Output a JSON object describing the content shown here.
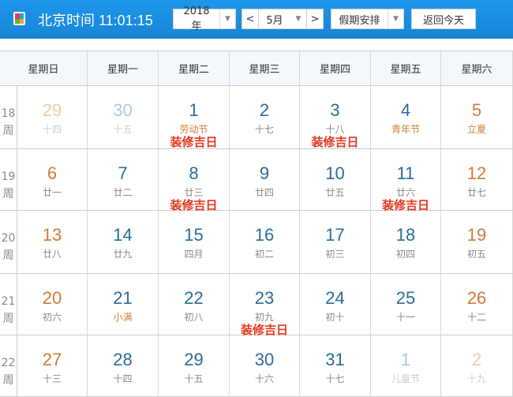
{
  "header": {
    "clock_label": "北京时间 11:01:15",
    "year": "2018年",
    "month": "5月",
    "prev": "<",
    "next": ">",
    "holiday": "假期安排",
    "today_button": "返回今天",
    "logo_colors": [
      "#e8365d",
      "#1aa3e8",
      "#5ab43a",
      "#f3a41c"
    ]
  },
  "weekdays": [
    "星期日",
    "星期一",
    "星期二",
    "星期三",
    "星期四",
    "星期五",
    "星期六"
  ],
  "week_suffix": "周",
  "colors": {
    "weekday": "#2a6c98",
    "weekend": "#d0793b",
    "tag": "#e4381d",
    "festival": "#d0803a"
  },
  "weeks": [
    {
      "no": "18",
      "days": [
        {
          "d": "29",
          "l": "十四",
          "o": true
        },
        {
          "d": "30",
          "l": "十五",
          "o": true
        },
        {
          "d": "1",
          "l": "劳动节",
          "f": true,
          "t": "装修吉日"
        },
        {
          "d": "2",
          "l": "十七"
        },
        {
          "d": "3",
          "l": "十八",
          "t": "装修吉日"
        },
        {
          "d": "4",
          "l": "青年节",
          "f": true
        },
        {
          "d": "5",
          "l": "立夏",
          "f": true
        }
      ]
    },
    {
      "no": "19",
      "days": [
        {
          "d": "6",
          "l": "廿一"
        },
        {
          "d": "7",
          "l": "廿二"
        },
        {
          "d": "8",
          "l": "廿三",
          "t": "装修吉日"
        },
        {
          "d": "9",
          "l": "廿四"
        },
        {
          "d": "10",
          "l": "廿五"
        },
        {
          "d": "11",
          "l": "廿六",
          "t": "装修吉日"
        },
        {
          "d": "12",
          "l": "廿七"
        }
      ]
    },
    {
      "no": "20",
      "days": [
        {
          "d": "13",
          "l": "廿八"
        },
        {
          "d": "14",
          "l": "廿九"
        },
        {
          "d": "15",
          "l": "四月"
        },
        {
          "d": "16",
          "l": "初二"
        },
        {
          "d": "17",
          "l": "初三"
        },
        {
          "d": "18",
          "l": "初四"
        },
        {
          "d": "19",
          "l": "初五"
        }
      ]
    },
    {
      "no": "21",
      "days": [
        {
          "d": "20",
          "l": "初六"
        },
        {
          "d": "21",
          "l": "小满",
          "f": true
        },
        {
          "d": "22",
          "l": "初八"
        },
        {
          "d": "23",
          "l": "初九",
          "t": "装修吉日"
        },
        {
          "d": "24",
          "l": "初十"
        },
        {
          "d": "25",
          "l": "十一"
        },
        {
          "d": "26",
          "l": "十二"
        }
      ]
    },
    {
      "no": "22",
      "days": [
        {
          "d": "27",
          "l": "十三"
        },
        {
          "d": "28",
          "l": "十四"
        },
        {
          "d": "29",
          "l": "十五"
        },
        {
          "d": "30",
          "l": "十六"
        },
        {
          "d": "31",
          "l": "十七"
        },
        {
          "d": "1",
          "l": "儿童节",
          "o": true,
          "f": true
        },
        {
          "d": "2",
          "l": "十九",
          "o": true
        }
      ]
    }
  ]
}
